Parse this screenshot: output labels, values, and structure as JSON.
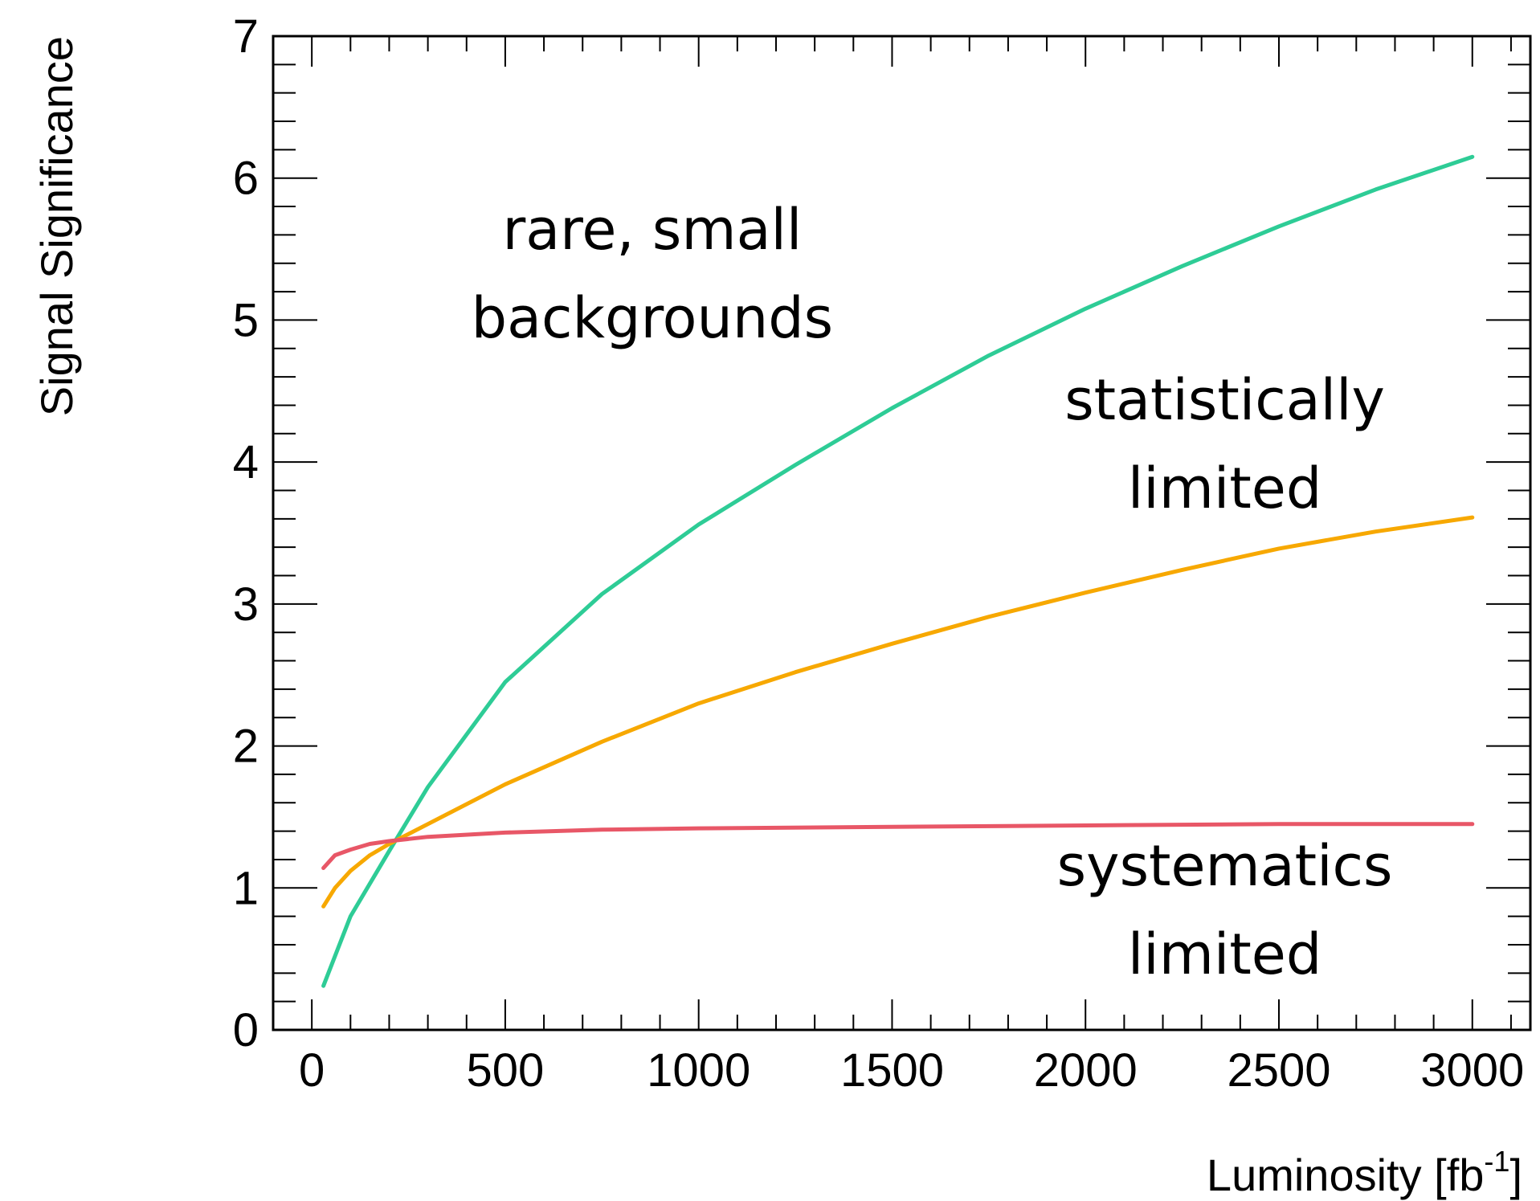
{
  "chart_data": {
    "type": "line",
    "title": "",
    "xlabel": "Luminosity [fb",
    "xlabel_sup": "-1",
    "xlabel_close": "]",
    "ylabel": "Signal Significance",
    "xlim": [
      -100,
      3150
    ],
    "ylim": [
      0,
      7
    ],
    "x_ticks": [
      0,
      500,
      1000,
      1500,
      2000,
      2500,
      3000
    ],
    "x_tick_labels": [
      "0",
      "500",
      "1000",
      "1500",
      "2000",
      "2500",
      "3000"
    ],
    "y_ticks": [
      0,
      1,
      2,
      3,
      4,
      5,
      6,
      7
    ],
    "y_tick_labels": [
      "0",
      "1",
      "2",
      "3",
      "4",
      "5",
      "6",
      "7"
    ],
    "grid": false,
    "series": [
      {
        "color": "#2ecc96",
        "x": [
          30,
          100,
          200,
          300,
          500,
          750,
          1000,
          1250,
          1500,
          1750,
          2000,
          2250,
          2500,
          2750,
          3000
        ],
        "values": [
          0.31,
          0.8,
          1.26,
          1.71,
          2.45,
          3.07,
          3.56,
          3.98,
          4.38,
          4.75,
          5.08,
          5.38,
          5.66,
          5.92,
          6.15
        ]
      },
      {
        "color": "#f7a800",
        "x": [
          30,
          60,
          100,
          150,
          200,
          300,
          500,
          750,
          1000,
          1250,
          1500,
          1750,
          2000,
          2250,
          2500,
          2750,
          3000
        ],
        "values": [
          0.87,
          1.0,
          1.12,
          1.23,
          1.31,
          1.45,
          1.73,
          2.03,
          2.3,
          2.52,
          2.72,
          2.91,
          3.08,
          3.24,
          3.39,
          3.51,
          3.61
        ]
      },
      {
        "color": "#e85767",
        "x": [
          30,
          60,
          100,
          150,
          200,
          300,
          500,
          750,
          1000,
          1500,
          2000,
          2500,
          3000
        ],
        "values": [
          1.14,
          1.23,
          1.27,
          1.31,
          1.33,
          1.36,
          1.39,
          1.41,
          1.42,
          1.43,
          1.44,
          1.45,
          1.45
        ]
      }
    ],
    "annotations": [
      {
        "lines": [
          "rare, small",
          "backgrounds"
        ],
        "x": 880,
        "y": 5.5
      },
      {
        "lines": [
          "statistically",
          "limited"
        ],
        "x": 2360,
        "y": 4.3
      },
      {
        "lines": [
          "systematics",
          "limited"
        ],
        "x": 2360,
        "y": 1.02
      }
    ]
  }
}
